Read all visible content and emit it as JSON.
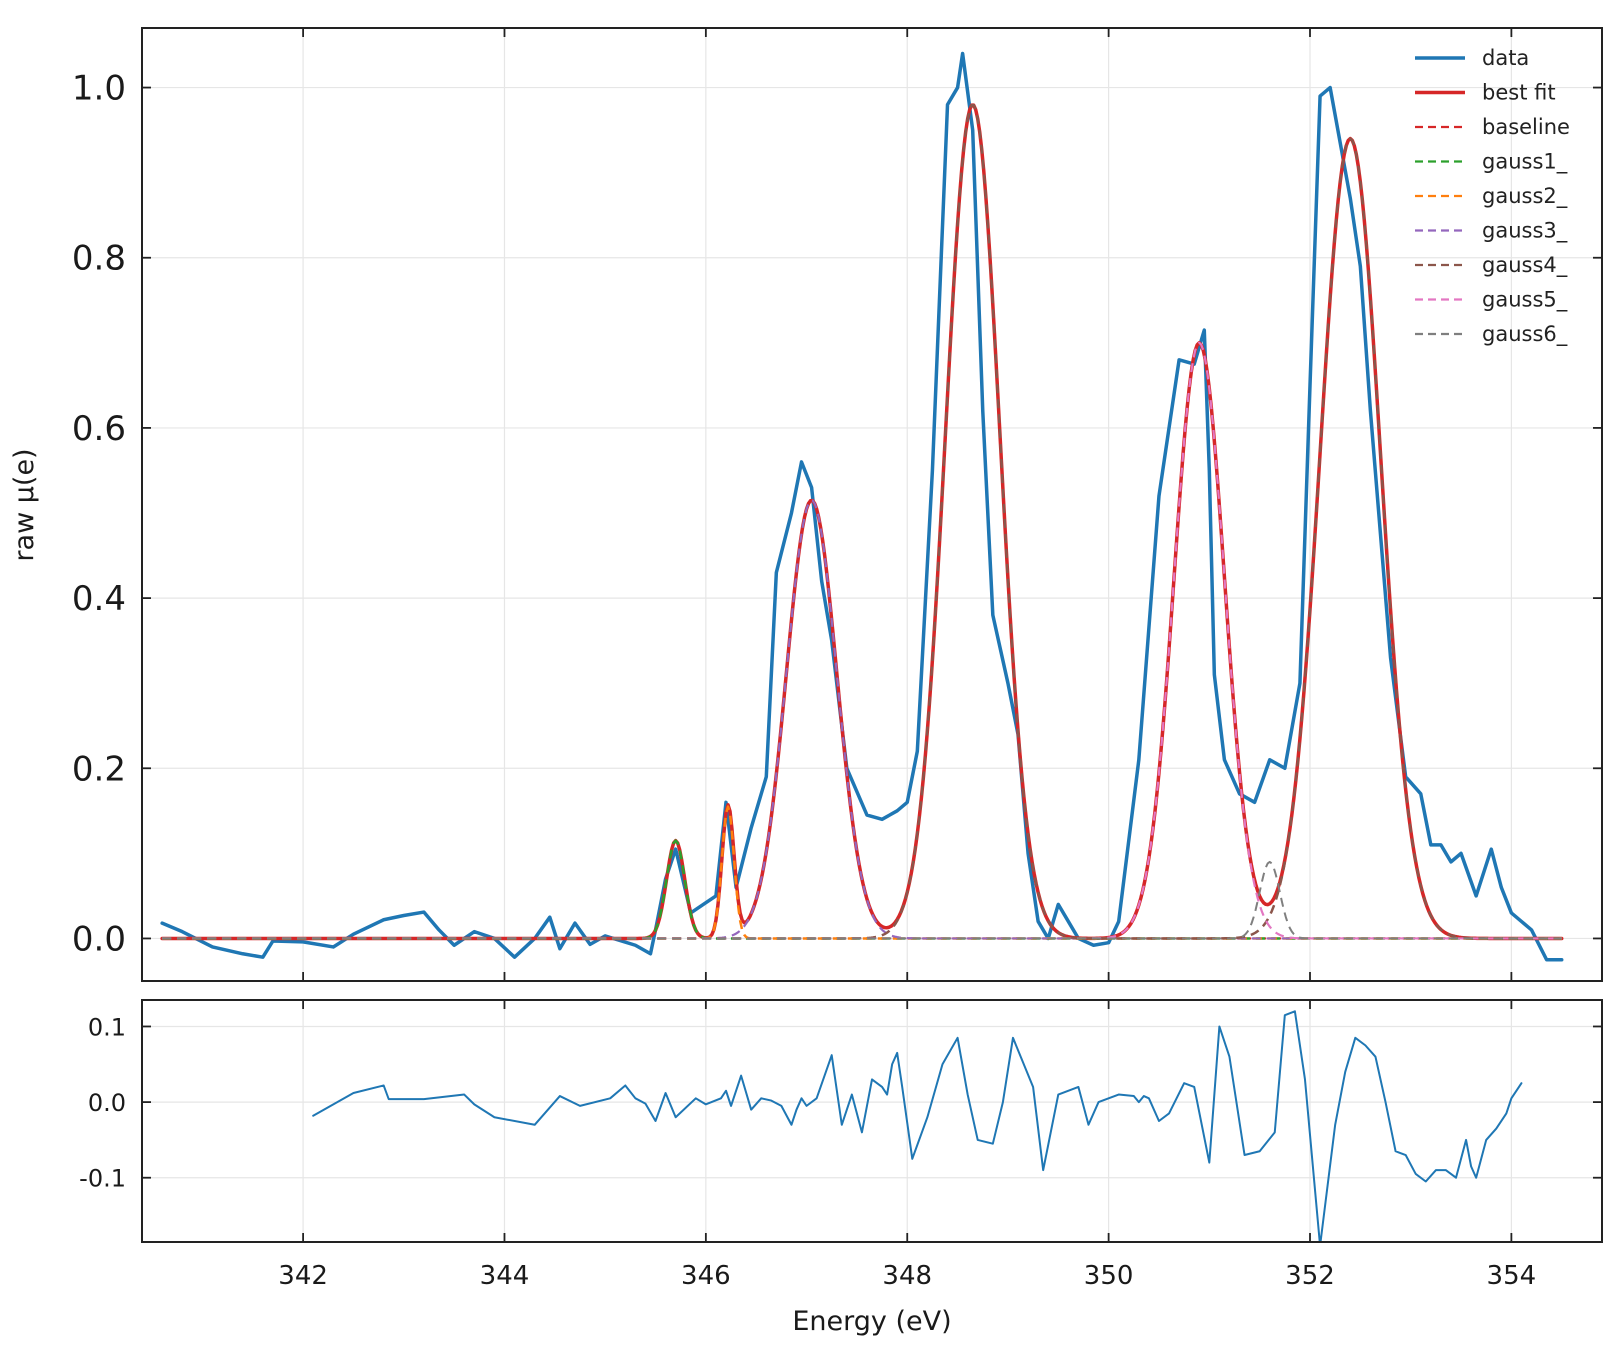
{
  "chart_data": [
    {
      "id": "main",
      "type": "line",
      "ylabel": "raw µ(e)",
      "xlim": [
        340.4,
        354.9
      ],
      "ylim": [
        -0.05,
        1.07
      ],
      "xticks": [
        342,
        344,
        346,
        348,
        350,
        352,
        354
      ],
      "yticks": [
        0.0,
        0.2,
        0.4,
        0.6,
        0.8,
        1.0
      ],
      "ytick_labels": [
        "0.0",
        "0.2",
        "0.4",
        "0.6",
        "0.8",
        "1.0"
      ],
      "grid": true,
      "legend_position": "top-right",
      "series": [
        {
          "name": "data",
          "color": "#1f77b4",
          "style": "solid",
          "width": 3.5,
          "x": [
            340.6,
            340.8,
            341.1,
            341.4,
            341.6,
            341.7,
            342.0,
            342.3,
            342.5,
            342.8,
            343.0,
            343.2,
            343.35,
            343.5,
            343.7,
            343.9,
            344.1,
            344.3,
            344.45,
            344.55,
            344.7,
            344.85,
            345.0,
            345.3,
            345.45,
            345.5,
            345.6,
            345.7,
            345.85,
            346.0,
            346.1,
            346.2,
            346.3,
            346.45,
            346.6,
            346.7,
            346.85,
            346.95,
            347.05,
            347.15,
            347.25,
            347.4,
            347.6,
            347.75,
            347.9,
            348.0,
            348.1,
            348.25,
            348.4,
            348.5,
            348.55,
            348.65,
            348.75,
            348.85,
            349.0,
            349.1,
            349.2,
            349.3,
            349.4,
            349.5,
            349.6,
            349.7,
            349.85,
            350.0,
            350.1,
            350.3,
            350.5,
            350.7,
            350.85,
            350.95,
            351.0,
            351.05,
            351.15,
            351.3,
            351.45,
            351.6,
            351.75,
            351.9,
            352.0,
            352.1,
            352.2,
            352.4,
            352.5,
            352.6,
            352.8,
            352.95,
            353.1,
            353.2,
            353.3,
            353.4,
            353.5,
            353.65,
            353.8,
            353.9,
            354.0,
            354.1,
            354.2,
            354.35,
            354.5
          ],
          "y": [
            0.018,
            0.008,
            -0.01,
            -0.018,
            -0.022,
            -0.003,
            -0.004,
            -0.01,
            0.005,
            0.022,
            0.027,
            0.031,
            0.01,
            -0.008,
            0.008,
            0.0,
            -0.022,
            0.0,
            0.025,
            -0.012,
            0.018,
            -0.007,
            0.003,
            -0.008,
            -0.018,
            0.01,
            0.07,
            0.105,
            0.03,
            0.042,
            0.05,
            0.16,
            0.06,
            0.13,
            0.19,
            0.43,
            0.5,
            0.56,
            0.53,
            0.42,
            0.35,
            0.2,
            0.145,
            0.14,
            0.15,
            0.16,
            0.22,
            0.55,
            0.98,
            1.0,
            1.04,
            0.95,
            0.62,
            0.38,
            0.3,
            0.24,
            0.1,
            0.02,
            0.0,
            0.04,
            0.02,
            0.0,
            -0.008,
            -0.005,
            0.02,
            0.21,
            0.52,
            0.68,
            0.675,
            0.715,
            0.55,
            0.31,
            0.21,
            0.17,
            0.16,
            0.21,
            0.2,
            0.3,
            0.65,
            0.99,
            1.0,
            0.87,
            0.79,
            0.62,
            0.33,
            0.19,
            0.17,
            0.11,
            0.11,
            0.09,
            0.1,
            0.05,
            0.105,
            0.06,
            0.03,
            0.02,
            0.01,
            -0.025,
            -0.025
          ]
        },
        {
          "name": "best fit",
          "color": "#d62728",
          "style": "solid",
          "width": 3.5,
          "model": [
            {
              "c": 345.7,
              "a": 0.115,
              "s": 0.09
            },
            {
              "c": 346.22,
              "a": 0.155,
              "s": 0.06
            },
            {
              "c": 347.05,
              "a": 0.515,
              "s": 0.25
            },
            {
              "c": 348.65,
              "a": 0.98,
              "s": 0.27
            },
            {
              "c": 350.9,
              "a": 0.7,
              "s": 0.25
            },
            {
              "c": 352.4,
              "a": 0.94,
              "s": 0.3
            }
          ]
        },
        {
          "name": "baseline",
          "color": "#d62728",
          "style": "dashed",
          "width": 2.2,
          "x": [
            340.6,
            354.5
          ],
          "y": [
            0.0,
            0.0
          ]
        },
        {
          "name": "gauss1_",
          "color": "#2ca02c",
          "style": "dashed",
          "width": 2.5,
          "model": [
            {
              "c": 345.7,
              "a": 0.115,
              "s": 0.09
            }
          ]
        },
        {
          "name": "gauss2_",
          "color": "#ff7f0e",
          "style": "dashed",
          "width": 2.5,
          "model": [
            {
              "c": 346.22,
              "a": 0.155,
              "s": 0.06
            }
          ]
        },
        {
          "name": "gauss3_",
          "color": "#9467bd",
          "style": "dashed",
          "width": 2.2,
          "model": [
            {
              "c": 347.05,
              "a": 0.515,
              "s": 0.25
            }
          ]
        },
        {
          "name": "gauss4_",
          "color": "#8c564b",
          "style": "dashed",
          "width": 2.5,
          "model": [
            {
              "c": 348.65,
              "a": 0.98,
              "s": 0.27
            },
            {
              "c": 352.4,
              "a": 0.94,
              "s": 0.3
            }
          ]
        },
        {
          "name": "gauss5_",
          "color": "#e377c2",
          "style": "dashed",
          "width": 2.2,
          "model": [
            {
              "c": 350.9,
              "a": 0.7,
              "s": 0.25
            }
          ]
        },
        {
          "name": "gauss6_",
          "color": "#7f7f7f",
          "style": "dashed",
          "width": 2.0,
          "model": [
            {
              "c": 351.6,
              "a": 0.09,
              "s": 0.1
            }
          ]
        }
      ]
    },
    {
      "id": "residual",
      "type": "line",
      "xlabel": "Energy (eV)",
      "xlim": [
        340.4,
        354.9
      ],
      "ylim": [
        -0.185,
        0.135
      ],
      "xticks": [
        342,
        344,
        346,
        348,
        350,
        352,
        354
      ],
      "xtick_labels": [
        "342",
        "344",
        "346",
        "348",
        "350",
        "352",
        "354"
      ],
      "yticks": [
        0.1,
        0.0,
        -0.1
      ],
      "ytick_labels": [
        "0.1",
        "0.0",
        "-0.1"
      ],
      "grid": true,
      "series": [
        {
          "name": "",
          "color": "#1f77b4",
          "style": "solid",
          "width": 2,
          "x": [
            342.1,
            342.5,
            342.8,
            342.85,
            343.2,
            343.6,
            343.7,
            343.9,
            344.3,
            344.55,
            344.75,
            345.05,
            345.2,
            345.3,
            345.4,
            345.5,
            345.6,
            345.7,
            345.9,
            346.0,
            346.15,
            346.2,
            346.25,
            346.35,
            346.45,
            346.55,
            346.65,
            346.75,
            346.85,
            346.9,
            346.95,
            347.0,
            347.1,
            347.25,
            347.35,
            347.45,
            347.55,
            347.65,
            347.75,
            347.8,
            347.85,
            347.9,
            347.95,
            348.05,
            348.2,
            348.35,
            348.5,
            348.6,
            348.7,
            348.85,
            348.95,
            349.05,
            349.25,
            349.35,
            349.5,
            349.7,
            349.8,
            349.9,
            350.0,
            350.1,
            350.25,
            350.3,
            350.35,
            350.4,
            350.5,
            350.6,
            350.75,
            350.85,
            351.0,
            351.1,
            351.2,
            351.35,
            351.5,
            351.65,
            351.75,
            351.85,
            351.95,
            352.1,
            352.25,
            352.35,
            352.45,
            352.55,
            352.65,
            352.75,
            352.85,
            352.95,
            353.05,
            353.15,
            353.25,
            353.35,
            353.45,
            353.55,
            353.6,
            353.65,
            353.75,
            353.85,
            353.95,
            354.0,
            354.1
          ],
          "y": [
            -0.018,
            0.012,
            0.022,
            0.004,
            0.004,
            0.01,
            -0.003,
            -0.02,
            -0.03,
            0.008,
            -0.005,
            0.005,
            0.022,
            0.005,
            -0.002,
            -0.025,
            0.012,
            -0.02,
            0.005,
            -0.003,
            0.005,
            0.015,
            -0.005,
            0.035,
            -0.01,
            0.005,
            0.002,
            -0.005,
            -0.03,
            -0.01,
            0.005,
            -0.005,
            0.005,
            0.062,
            -0.03,
            0.01,
            -0.04,
            0.03,
            0.02,
            0.01,
            0.05,
            0.065,
            0.02,
            -0.075,
            -0.02,
            0.05,
            0.085,
            0.01,
            -0.05,
            -0.055,
            0.0,
            0.085,
            0.02,
            -0.09,
            0.01,
            0.02,
            -0.03,
            0.0,
            0.005,
            0.01,
            0.008,
            0.0,
            0.008,
            0.005,
            -0.025,
            -0.015,
            0.025,
            0.02,
            -0.08,
            0.1,
            0.06,
            -0.07,
            -0.065,
            -0.04,
            0.115,
            0.12,
            0.03,
            -0.19,
            -0.03,
            0.04,
            0.085,
            0.075,
            0.06,
            0.0,
            -0.065,
            -0.07,
            -0.095,
            -0.105,
            -0.09,
            -0.09,
            -0.1,
            -0.05,
            -0.085,
            -0.1,
            -0.05,
            -0.035,
            -0.015,
            0.005,
            0.025
          ]
        }
      ]
    }
  ]
}
